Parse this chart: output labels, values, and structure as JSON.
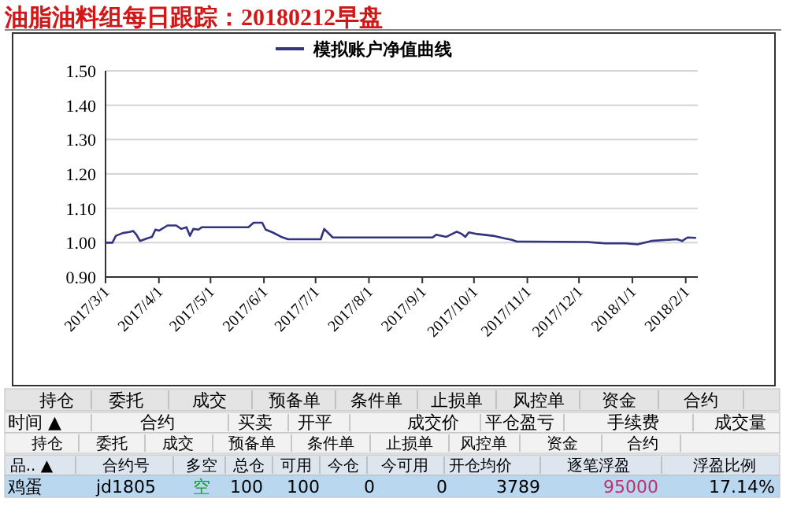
{
  "chart_data": {
    "type": "line",
    "title": "油脂油料组每日跟踪：20180212早盘",
    "x": [
      "2017-03-01",
      "2017-03-05",
      "2017-03-07",
      "2017-03-11",
      "2017-03-15",
      "2017-03-17",
      "2017-03-19",
      "2017-03-21",
      "2017-03-25",
      "2017-03-28",
      "2017-03-30",
      "2017-04-01",
      "2017-04-06",
      "2017-04-11",
      "2017-04-14",
      "2017-04-17",
      "2017-04-19",
      "2017-04-21",
      "2017-04-24",
      "2017-04-26",
      "2017-05-23",
      "2017-05-26",
      "2017-05-31",
      "2017-06-02",
      "2017-06-06",
      "2017-06-11",
      "2017-06-15",
      "2017-07-04",
      "2017-07-06",
      "2017-07-08",
      "2017-07-11",
      "2017-09-07",
      "2017-09-09",
      "2017-09-15",
      "2017-09-21",
      "2017-09-24",
      "2017-09-26",
      "2017-09-28",
      "2017-10-03",
      "2017-10-12",
      "2017-10-19",
      "2017-10-23",
      "2017-10-26",
      "2017-10-31",
      "2017-12-06",
      "2017-12-16",
      "2017-12-28",
      "2018-01-04",
      "2018-01-12",
      "2018-01-27",
      "2018-01-30",
      "2018-02-02",
      "2018-02-07"
    ],
    "series": [
      {
        "name": "模拟账户净值曲线",
        "color": "#33337f",
        "values": [
          1.0,
          1.0,
          1.02,
          1.028,
          1.031,
          1.034,
          1.023,
          1.005,
          1.012,
          1.017,
          1.038,
          1.035,
          1.05,
          1.05,
          1.04,
          1.045,
          1.02,
          1.04,
          1.038,
          1.045,
          1.045,
          1.058,
          1.058,
          1.038,
          1.03,
          1.017,
          1.01,
          1.01,
          1.04,
          1.03,
          1.015,
          1.015,
          1.023,
          1.017,
          1.032,
          1.025,
          1.017,
          1.03,
          1.025,
          1.02,
          1.012,
          1.008,
          1.003,
          1.003,
          1.002,
          0.998,
          0.998,
          0.995,
          1.005,
          1.01,
          1.005,
          1.015,
          1.014
        ]
      }
    ],
    "xlim": [
      "2017-03-01",
      "2018-02-08"
    ],
    "xticks": [
      {
        "value": "2017-03-01",
        "label": "2017/3/1"
      },
      {
        "value": "2017-04-01",
        "label": "2017/4/1"
      },
      {
        "value": "2017-05-01",
        "label": "2017/5/1"
      },
      {
        "value": "2017-06-01",
        "label": "2017/6/1"
      },
      {
        "value": "2017-07-01",
        "label": "2017/7/1"
      },
      {
        "value": "2017-08-01",
        "label": "2017/8/1"
      },
      {
        "value": "2017-09-01",
        "label": "2017/9/1"
      },
      {
        "value": "2017-10-01",
        "label": "2017/10/1"
      },
      {
        "value": "2017-11-01",
        "label": "2017/11/1"
      },
      {
        "value": "2017-12-01",
        "label": "2017/12/1"
      },
      {
        "value": "2018-01-01",
        "label": "2018/1/1"
      },
      {
        "value": "2018-02-01",
        "label": "2018/2/1"
      }
    ],
    "ylim": [
      0.9,
      1.5
    ],
    "yticks": [
      {
        "value": 0.9,
        "label": "0.90"
      },
      {
        "value": 1.0,
        "label": "1.00"
      },
      {
        "value": 1.1,
        "label": "1.10"
      },
      {
        "value": 1.2,
        "label": "1.20"
      },
      {
        "value": 1.3,
        "label": "1.30"
      },
      {
        "value": 1.4,
        "label": "1.40"
      },
      {
        "value": 1.5,
        "label": "1.50"
      }
    ],
    "grid": "y",
    "legend": "top",
    "marker": "none",
    "line_style": "solid",
    "annotations": [
      "持仓",
      "委托",
      "成交",
      "预备单",
      "条件单",
      "止损单",
      "风控单",
      "资金",
      "合约",
      "时间 ▲",
      "合约",
      "买卖",
      "开平",
      "成交价",
      "平仓盈亏",
      "手续费",
      "成交量",
      "持仓",
      "委托",
      "成交",
      "预备单",
      "条件单",
      "止损单",
      "风控单",
      "资金",
      "合约",
      "品.. ▲",
      "合约号",
      "多空",
      "总仓",
      "可用",
      "今仓",
      "今可用",
      "开仓均价",
      "逐笔浮盈",
      "浮盈比例",
      "鸡蛋",
      "jd1805",
      "空",
      "100",
      "100",
      "0",
      "0",
      "3789",
      "95000",
      "17.14%"
    ]
  }
}
